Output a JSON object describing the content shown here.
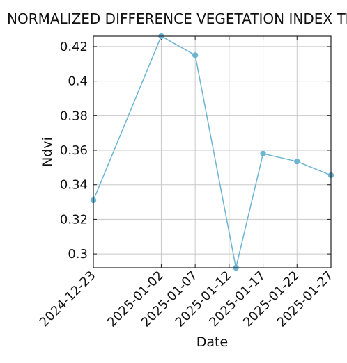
{
  "chart_data": {
    "type": "line",
    "title": "NORMALIZED DIFFERENCE VEGETATION INDEX TREND",
    "xlabel": "Date",
    "ylabel": "Ndvi",
    "x": [
      "2024-12-23",
      "2025-01-02",
      "2025-01-07",
      "2025-01-13",
      "2025-01-17",
      "2025-01-22",
      "2025-01-27"
    ],
    "series": [
      {
        "values": [
          0.331,
          0.426,
          0.415,
          0.292,
          0.358,
          0.3535,
          0.3455
        ],
        "color": "#6cb4d2"
      }
    ],
    "xticks": [
      "2024-12-23",
      "2025-01-02",
      "2025-01-07",
      "2025-01-12",
      "2025-01-17",
      "2025-01-22",
      "2025-01-27"
    ],
    "yticks": [
      0.3,
      0.32,
      0.34,
      0.36,
      0.38,
      0.4,
      0.42
    ],
    "ytick_labels": [
      "0.3",
      "0.32",
      "0.34",
      "0.36",
      "0.38",
      "0.4",
      "0.42"
    ],
    "xlim": [
      "2024-12-23",
      "2025-01-27"
    ],
    "ylim": [
      0.292,
      0.426
    ],
    "grid": true
  }
}
